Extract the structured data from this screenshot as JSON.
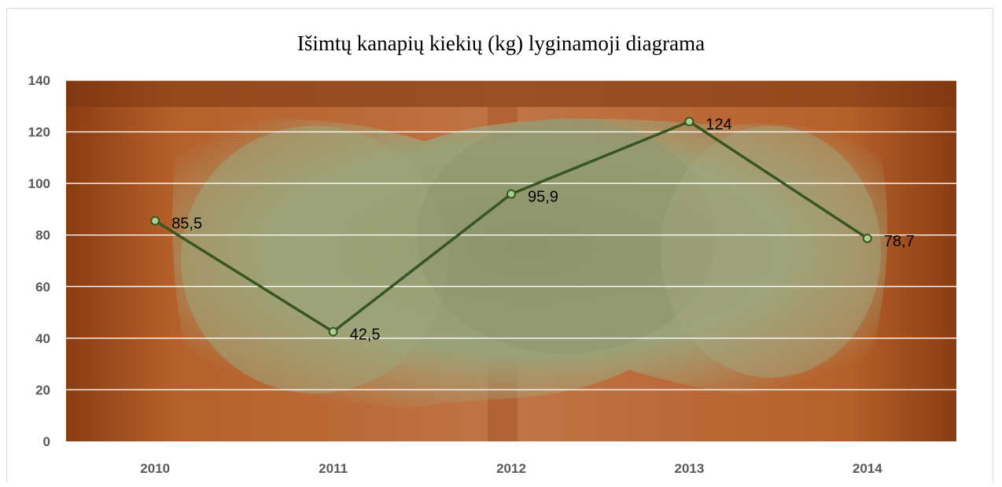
{
  "chart_data": {
    "type": "line",
    "title": "Išimtų kanapių kiekių (kg) lyginamoji  diagrama",
    "categories": [
      "2010",
      "2011",
      "2012",
      "2013",
      "2014"
    ],
    "series": [
      {
        "values": [
          85.5,
          42.5,
          95.9,
          124,
          78.7
        ],
        "data_labels": [
          "85,5",
          "42,5",
          "95,9",
          "124",
          "78,7"
        ]
      }
    ],
    "ylim": [
      0,
      140
    ],
    "yticks": [
      "0",
      "20",
      "40",
      "60",
      "80",
      "100",
      "120",
      "140"
    ],
    "grid": true,
    "background": "photograph of drying cannabis plants hanging in a wooden cabinet",
    "line_color": "#375623",
    "marker_fill": "#a9d18e"
  }
}
